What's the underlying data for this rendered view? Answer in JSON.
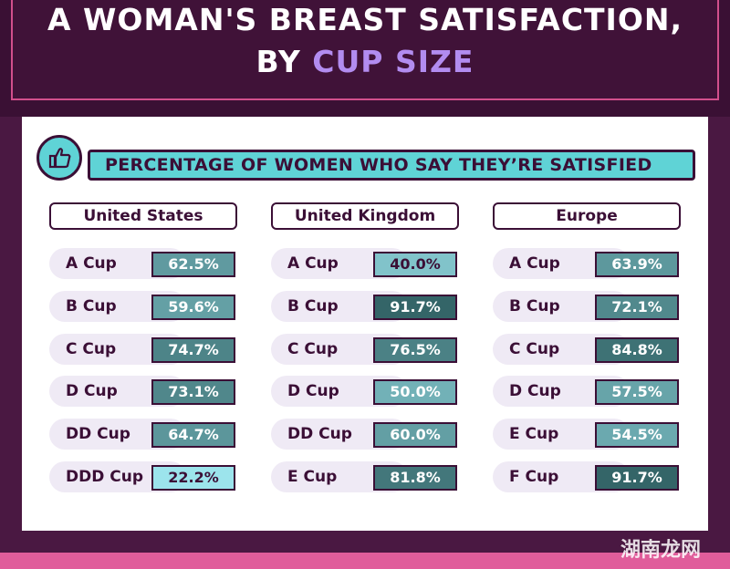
{
  "title": {
    "line1": "A WOMAN'S BREAST SATISFACTION,",
    "line2_prefix": "BY ",
    "line2_accent": "CUP SIZE"
  },
  "heading": {
    "normal": "PERCENTAGE OF WOMEN WHO SAY ",
    "bold": "THEY’RE SATISFIED"
  },
  "watermark": "湖南龙网",
  "colors": {
    "accent_purple": "#b28cf0",
    "teal_light": "#5fd3d6",
    "teal_dark": "#2f5f62",
    "frame_pink": "#d24f8c",
    "dark_purple": "#3b0f36"
  },
  "chart_data": {
    "type": "table",
    "title": "PERCENTAGE OF WOMEN WHO SAY THEY’RE SATISFIED",
    "unit": "%",
    "regions": [
      {
        "name": "United States",
        "rows": [
          {
            "cup": "A Cup",
            "value": 62.5,
            "label": "62.5%"
          },
          {
            "cup": "B Cup",
            "value": 59.6,
            "label": "59.6%"
          },
          {
            "cup": "C Cup",
            "value": 74.7,
            "label": "74.7%"
          },
          {
            "cup": "D Cup",
            "value": 73.1,
            "label": "73.1%"
          },
          {
            "cup": "DD Cup",
            "value": 64.7,
            "label": "64.7%"
          },
          {
            "cup": "DDD Cup",
            "value": 22.2,
            "label": "22.2%"
          }
        ]
      },
      {
        "name": "United Kingdom",
        "rows": [
          {
            "cup": "A Cup",
            "value": 40.0,
            "label": "40.0%"
          },
          {
            "cup": "B Cup",
            "value": 91.7,
            "label": "91.7%"
          },
          {
            "cup": "C Cup",
            "value": 76.5,
            "label": "76.5%"
          },
          {
            "cup": "D Cup",
            "value": 50.0,
            "label": "50.0%"
          },
          {
            "cup": "DD Cup",
            "value": 60.0,
            "label": "60.0%"
          },
          {
            "cup": "E Cup",
            "value": 81.8,
            "label": "81.8%"
          }
        ]
      },
      {
        "name": "Europe",
        "rows": [
          {
            "cup": "A Cup",
            "value": 63.9,
            "label": "63.9%"
          },
          {
            "cup": "B Cup",
            "value": 72.1,
            "label": "72.1%"
          },
          {
            "cup": "C Cup",
            "value": 84.8,
            "label": "84.8%"
          },
          {
            "cup": "D Cup",
            "value": 57.5,
            "label": "57.5%"
          },
          {
            "cup": "E Cup",
            "value": 54.5,
            "label": "54.5%"
          },
          {
            "cup": "F Cup",
            "value": 91.7,
            "label": "91.7%"
          }
        ]
      }
    ]
  }
}
